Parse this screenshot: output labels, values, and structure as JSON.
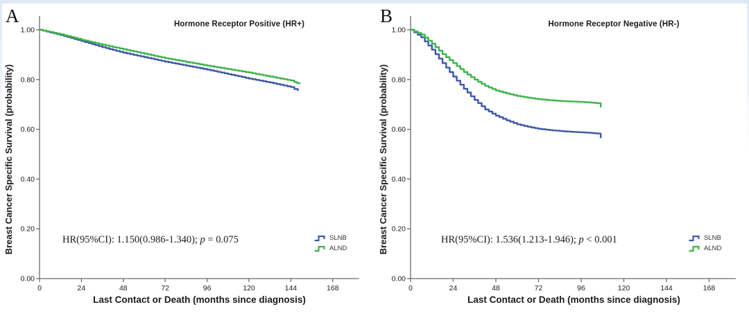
{
  "page": {
    "background": "#ffffff",
    "top_strip_color": "#dfe9f5"
  },
  "colors": {
    "slnb_blue": "#3E56A8",
    "alnd_green": "#3CB44A",
    "axis_gray": "#6b6b6b",
    "text_black": "#1a1a1a"
  },
  "chart_data": [
    {
      "type": "line",
      "subtype": "kaplan-meier-step",
      "panel_letter": "A",
      "title": "Hormone Receptor Positive (HR+)",
      "xlabel": "Last Contact or Death (months since diagnosis)",
      "ylabel": "Breast Cancer Specific Survival (probability)",
      "annotation": {
        "prefix": "HR(95%CI): 1.150(0.986-1.340); ",
        "italic": "p",
        "suffix": " = 0.075"
      },
      "xlim": [
        0,
        183
      ],
      "ylim": [
        0,
        1.0
      ],
      "xticks": [
        "0",
        "24",
        "48",
        "72",
        "96",
        "120",
        "144",
        "168"
      ],
      "yticks": [
        "0.00",
        "0.20",
        "0.40",
        "0.60",
        "0.80",
        "1.00"
      ],
      "legend_position": "lower-right",
      "grid": false,
      "legend": [
        {
          "label": "SLNB",
          "color": "#3E56A8"
        },
        {
          "label": "ALND",
          "color": "#3CB44A"
        }
      ],
      "series": [
        {
          "name": "SLNB",
          "color": "#3E56A8",
          "points": [
            [
              0,
              1.0
            ],
            [
              12,
              0.979
            ],
            [
              24,
              0.955
            ],
            [
              36,
              0.93
            ],
            [
              48,
              0.908
            ],
            [
              60,
              0.89
            ],
            [
              72,
              0.872
            ],
            [
              84,
              0.856
            ],
            [
              96,
              0.84
            ],
            [
              108,
              0.822
            ],
            [
              120,
              0.804
            ],
            [
              132,
              0.788
            ],
            [
              144,
              0.77
            ],
            [
              146,
              0.762
            ],
            [
              148,
              0.755
            ]
          ]
        },
        {
          "name": "ALND",
          "color": "#3CB44A",
          "points": [
            [
              0,
              1.0
            ],
            [
              12,
              0.982
            ],
            [
              24,
              0.96
            ],
            [
              36,
              0.94
            ],
            [
              48,
              0.922
            ],
            [
              60,
              0.904
            ],
            [
              72,
              0.886
            ],
            [
              84,
              0.871
            ],
            [
              96,
              0.856
            ],
            [
              108,
              0.842
            ],
            [
              120,
              0.828
            ],
            [
              132,
              0.812
            ],
            [
              144,
              0.796
            ],
            [
              146,
              0.79
            ],
            [
              149,
              0.782
            ]
          ]
        }
      ]
    },
    {
      "type": "line",
      "subtype": "kaplan-meier-step",
      "panel_letter": "B",
      "title": "Hormone Receptor Negative (HR-)",
      "xlabel": "Last Contact or Death (months since diagnosis)",
      "ylabel": "Breast Cancer Specific Survival (probability)",
      "annotation": {
        "prefix": "HR(95%CI): 1.536(1.213-1.946); ",
        "italic": "p",
        "suffix": " < 0.001"
      },
      "xlim": [
        0,
        183
      ],
      "ylim": [
        0,
        1.0
      ],
      "xticks": [
        "0",
        "24",
        "48",
        "72",
        "96",
        "120",
        "144",
        "168"
      ],
      "yticks": [
        "0.00",
        "0.20",
        "0.40",
        "0.60",
        "0.80",
        "1.00"
      ],
      "legend_position": "lower-right",
      "grid": false,
      "legend": [
        {
          "label": "SLNB",
          "color": "#3E56A8"
        },
        {
          "label": "ALND",
          "color": "#3CB44A"
        }
      ],
      "series": [
        {
          "name": "SLNB",
          "color": "#3E56A8",
          "points": [
            [
              0,
              1.0
            ],
            [
              6,
              0.97
            ],
            [
              12,
              0.92
            ],
            [
              18,
              0.866
            ],
            [
              24,
              0.812
            ],
            [
              30,
              0.763
            ],
            [
              36,
              0.718
            ],
            [
              42,
              0.68
            ],
            [
              48,
              0.655
            ],
            [
              54,
              0.636
            ],
            [
              60,
              0.62
            ],
            [
              66,
              0.61
            ],
            [
              72,
              0.602
            ],
            [
              78,
              0.597
            ],
            [
              84,
              0.593
            ],
            [
              90,
              0.59
            ],
            [
              96,
              0.588
            ],
            [
              102,
              0.585
            ],
            [
              105,
              0.583
            ],
            [
              107,
              0.565
            ]
          ]
        },
        {
          "name": "ALND",
          "color": "#3CB44A",
          "points": [
            [
              0,
              1.0
            ],
            [
              6,
              0.981
            ],
            [
              12,
              0.944
            ],
            [
              18,
              0.902
            ],
            [
              24,
              0.866
            ],
            [
              30,
              0.83
            ],
            [
              36,
              0.8
            ],
            [
              42,
              0.774
            ],
            [
              48,
              0.756
            ],
            [
              54,
              0.744
            ],
            [
              60,
              0.734
            ],
            [
              66,
              0.727
            ],
            [
              72,
              0.721
            ],
            [
              78,
              0.717
            ],
            [
              84,
              0.714
            ],
            [
              90,
              0.712
            ],
            [
              96,
              0.71
            ],
            [
              102,
              0.707
            ],
            [
              105,
              0.705
            ],
            [
              107,
              0.688
            ]
          ]
        }
      ]
    }
  ]
}
